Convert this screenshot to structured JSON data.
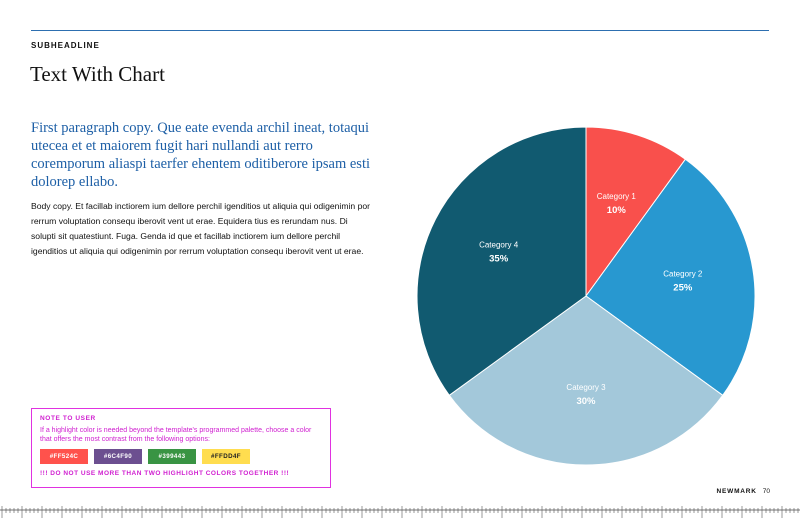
{
  "subheadline": "SUBHEADLINE",
  "headline": "Text With Chart",
  "lead_paragraph": "First paragraph copy. Que eate evenda archil ineat, totaqui utecea et et maiorem fugit hari nullandi aut rerro coremporum aliaspi taerfer ehentem oditiberore ipsam esti dolorep ellabo.",
  "body_paragraph": "Body copy. Et facillab inctiorem ium dellore perchil igenditios ut aliquia qui odigenimin por rerrum voluptation consequ iberovit vent ut erae. Equidera tius es rerundam nus. Di solupti sit quatestiunt. Fuga. Genda id que et facillab inctiorem ium dellore perchil igenditios ut aliquia qui odigenimin por rerrum voluptation consequ iberovit vent ut erae.",
  "chart_data": {
    "type": "pie",
    "categories": [
      "Category 1",
      "Category 2",
      "Category 3",
      "Category 4"
    ],
    "values": [
      10,
      25,
      30,
      35
    ],
    "value_labels": [
      "10%",
      "25%",
      "30%",
      "35%"
    ],
    "colors": [
      "#f9504c",
      "#2898d0",
      "#a3c8da",
      "#115a70"
    ],
    "start": "12 o'clock, clockwise",
    "legend": "none, labels inside slices"
  },
  "note": {
    "title": "NOTE TO USER",
    "text": "If a highlight color is needed beyond the template's programmed palette, choose a color that offers the most contrast from the following options:",
    "swatches": [
      {
        "label": "#FF524C",
        "color": "#FF524C"
      },
      {
        "label": "#6C4F90",
        "color": "#6C4F90"
      },
      {
        "label": "#399443",
        "color": "#399443"
      },
      {
        "label": "#FFDD4F",
        "color": "#FFDD4F"
      }
    ],
    "warning": "!!! DO NOT USE MORE THAN TWO HIGHLIGHT COLORS TOGETHER !!!"
  },
  "footer": {
    "brand": "NEWMARK",
    "page_number": "70"
  }
}
